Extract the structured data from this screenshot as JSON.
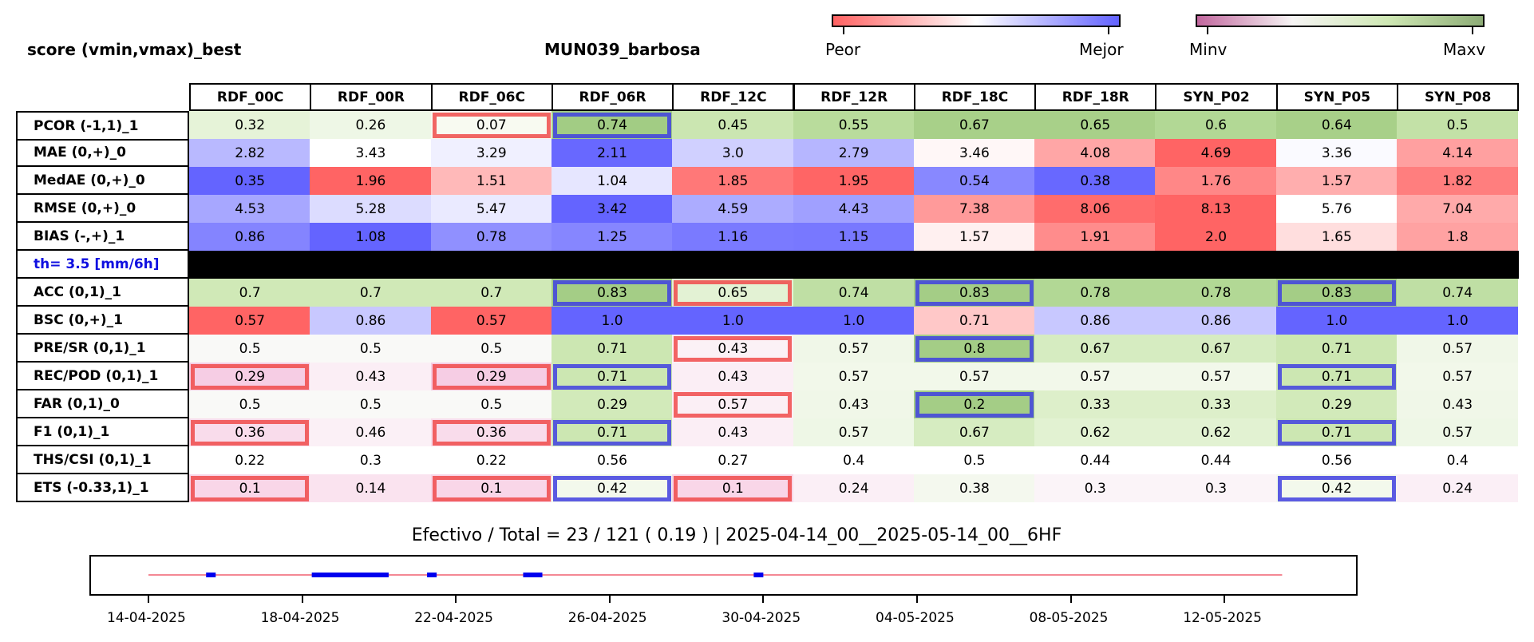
{
  "header": {
    "score_label": "score (vmin,vmax)_best",
    "station": "MUN039_barbosa"
  },
  "colorbars": [
    {
      "name": "diverging",
      "colors": [
        "#ff6262",
        "#ffffff",
        "#6262ff"
      ],
      "left_label": "Peor",
      "right_label": "Mejor"
    },
    {
      "name": "sequential",
      "colors": [
        "#c2679e",
        "#f6f4f4",
        "#cfe8b4",
        "#8dac76"
      ],
      "left_label": "Minv",
      "right_label": "Maxv"
    }
  ],
  "chart_data": {
    "type": "table",
    "columns": [
      "RDF_00C",
      "RDF_00R",
      "RDF_06C",
      "RDF_06R",
      "RDF_12C",
      "RDF_12R",
      "RDF_18C",
      "RDF_18R",
      "SYN_P02",
      "SYN_P05",
      "SYN_P08"
    ],
    "rows": [
      {
        "label": "PCOR (-1,1)_1",
        "values": [
          "0.32",
          "0.26",
          "0.07",
          "0.74",
          "0.45",
          "0.55",
          "0.67",
          "0.65",
          "0.6",
          "0.64",
          "0.5"
        ],
        "colors": [
          "#e6f3d8",
          "#eef7e6",
          "#f8faf1",
          "#a2cc84",
          "#cbe6b1",
          "#b9dc9c",
          "#a8d089",
          "#a8d089",
          "#b2d895",
          "#a8d089",
          "#c3e1a7"
        ],
        "best": [
          3
        ],
        "worst": [
          2
        ]
      },
      {
        "label": "MAE (0,+)_0",
        "values": [
          "2.82",
          "3.43",
          "3.29",
          "2.11",
          "3.0",
          "2.79",
          "3.46",
          "4.08",
          "4.69",
          "3.36",
          "4.14"
        ],
        "colors": [
          "#b9b9ff",
          "#ffffff",
          "#f0f0ff",
          "#6868ff",
          "#d0d0ff",
          "#b6b6ff",
          "#fff7f7",
          "#ffa6a6",
          "#ff6464",
          "#fafaff",
          "#ffa0a0"
        ],
        "best": [],
        "worst": []
      },
      {
        "label": "MedAE (0,+)_0",
        "values": [
          "0.35",
          "1.96",
          "1.51",
          "1.04",
          "1.85",
          "1.95",
          "0.54",
          "0.38",
          "1.76",
          "1.57",
          "1.82"
        ],
        "colors": [
          "#6464ff",
          "#ff6464",
          "#ffb9b9",
          "#e6e6ff",
          "#ff7878",
          "#ff6565",
          "#8888ff",
          "#6868ff",
          "#ff8787",
          "#ffaeae",
          "#ff7e7e"
        ],
        "best": [],
        "worst": []
      },
      {
        "label": "RMSE (0,+)_0",
        "values": [
          "4.53",
          "5.28",
          "5.47",
          "3.42",
          "4.59",
          "4.43",
          "7.38",
          "8.06",
          "8.13",
          "5.76",
          "7.04"
        ],
        "colors": [
          "#a7a7ff",
          "#dcdcff",
          "#eaeaff",
          "#6464ff",
          "#acacff",
          "#a0a0ff",
          "#ff9a9a",
          "#ff6c6c",
          "#ff6464",
          "#ffffff",
          "#ffaaaa"
        ],
        "best": [],
        "worst": []
      },
      {
        "label": "BIAS (-,+)_1",
        "values": [
          "0.86",
          "1.08",
          "0.78",
          "1.25",
          "1.16",
          "1.15",
          "1.57",
          "1.91",
          "2.0",
          "1.65",
          "1.8"
        ],
        "colors": [
          "#8484ff",
          "#6464ff",
          "#9090ff",
          "#8686ff",
          "#7a7aff",
          "#7878ff",
          "#fff0f0",
          "#ff8c8c",
          "#ff6464",
          "#ffdede",
          "#ffa2a2"
        ],
        "best": [],
        "worst": []
      },
      {
        "label": "th= 3.5 [mm/6h]",
        "values": [],
        "colors": [],
        "best": [],
        "worst": [],
        "separator": true
      },
      {
        "label": "ACC (0,1)_1",
        "values": [
          "0.7",
          "0.7",
          "0.7",
          "0.83",
          "0.65",
          "0.74",
          "0.83",
          "0.78",
          "0.78",
          "0.83",
          "0.74"
        ],
        "colors": [
          "#d0e9b7",
          "#d0e9b7",
          "#d0e9b7",
          "#a4cd86",
          "#e3f2d4",
          "#bfdfa4",
          "#a4cd86",
          "#b2d895",
          "#b2d895",
          "#a4cd86",
          "#bfdfa4"
        ],
        "best": [
          3,
          6,
          9
        ],
        "worst": [
          4
        ]
      },
      {
        "label": "BSC (0,+)_1",
        "values": [
          "0.57",
          "0.86",
          "0.57",
          "1.0",
          "1.0",
          "1.0",
          "0.71",
          "0.86",
          "0.86",
          "1.0",
          "1.0"
        ],
        "colors": [
          "#ff6464",
          "#c8c8ff",
          "#ff6464",
          "#6464ff",
          "#6464ff",
          "#6464ff",
          "#ffc8c8",
          "#c8c8ff",
          "#c8c8ff",
          "#6464ff",
          "#6464ff"
        ],
        "best": [],
        "worst": []
      },
      {
        "label": "PRE/SR (0,1)_1",
        "values": [
          "0.5",
          "0.5",
          "0.5",
          "0.71",
          "0.43",
          "0.57",
          "0.8",
          "0.67",
          "0.67",
          "0.71",
          "0.57"
        ],
        "colors": [
          "#f9f9f7",
          "#f9f9f7",
          "#f9f9f7",
          "#cce7b2",
          "#fbf1f6",
          "#f0f7e8",
          "#a4cd86",
          "#d6ecc1",
          "#d6ecc1",
          "#cce7b2",
          "#f0f7e8"
        ],
        "best": [
          6
        ],
        "worst": [
          4
        ]
      },
      {
        "label": "REC/POD (0,1)_1",
        "values": [
          "0.29",
          "0.43",
          "0.29",
          "0.71",
          "0.43",
          "0.57",
          "0.57",
          "0.57",
          "0.57",
          "0.71",
          "0.57"
        ],
        "colors": [
          "#f6cde4",
          "#fbeef5",
          "#f6cde4",
          "#cce7b2",
          "#fbeef5",
          "#f2f8ea",
          "#f2f8ea",
          "#f2f8ea",
          "#f2f8ea",
          "#cce7b2",
          "#f2f8ea"
        ],
        "best": [
          3,
          9
        ],
        "worst": [
          0,
          2
        ]
      },
      {
        "label": "FAR (0,1)_0",
        "values": [
          "0.5",
          "0.5",
          "0.5",
          "0.29",
          "0.57",
          "0.43",
          "0.2",
          "0.33",
          "0.33",
          "0.29",
          "0.43"
        ],
        "colors": [
          "#f9f9f7",
          "#f9f9f7",
          "#f9f9f7",
          "#d2eaba",
          "#fbeff5",
          "#f0f7e8",
          "#a4cd86",
          "#ddefca",
          "#ddefca",
          "#d2eaba",
          "#f0f7e8"
        ],
        "best": [
          6
        ],
        "worst": [
          4
        ]
      },
      {
        "label": "F1 (0,1)_1",
        "values": [
          "0.36",
          "0.46",
          "0.36",
          "0.71",
          "0.43",
          "0.57",
          "0.67",
          "0.62",
          "0.62",
          "0.71",
          "0.57"
        ],
        "colors": [
          "#f9dceb",
          "#fbf0f6",
          "#f9dceb",
          "#cce7b2",
          "#fbeef5",
          "#eef7e6",
          "#d6ecc1",
          "#e2f2d2",
          "#e2f2d2",
          "#cce7b2",
          "#eef7e6"
        ],
        "best": [
          3,
          9
        ],
        "worst": [
          0,
          2
        ]
      },
      {
        "label": "THS/CSI (0,1)_1",
        "values": [
          "0.22",
          "0.3",
          "0.22",
          "0.56",
          "0.27",
          "0.4",
          "0.5",
          "0.44",
          "0.44",
          "0.56",
          "0.4"
        ],
        "colors": [
          "#ffffff",
          "#ffffff",
          "#ffffff",
          "#ffffff",
          "#ffffff",
          "#ffffff",
          "#ffffff",
          "#ffffff",
          "#ffffff",
          "#ffffff",
          "#ffffff"
        ],
        "best": [],
        "worst": []
      },
      {
        "label": "ETS (-0.33,1)_1",
        "values": [
          "0.1",
          "0.14",
          "0.1",
          "0.42",
          "0.1",
          "0.24",
          "0.38",
          "0.3",
          "0.3",
          "0.42",
          "0.24"
        ],
        "colors": [
          "#f9d6e8",
          "#fae3ef",
          "#f9d6e8",
          "#f3f9ec",
          "#f9d6e8",
          "#fbeff6",
          "#f4f8ee",
          "#fbf4f8",
          "#fbf4f8",
          "#f3f9ec",
          "#fbeff6"
        ],
        "best": [
          3,
          9
        ],
        "worst": [
          0,
          2,
          4
        ]
      }
    ],
    "highlight_colors": {
      "best": "#4040e0",
      "worst": "#f04a4a"
    },
    "summary": "Efectivo / Total  =  23 / 121 ( 0.19 ) | 2025-04-14_00__2025-05-14_00__6HF",
    "timeline": {
      "x_ticks": [
        "14-04-2025",
        "18-04-2025",
        "22-04-2025",
        "26-04-2025",
        "30-04-2025",
        "04-05-2025",
        "08-05-2025",
        "12-05-2025"
      ],
      "x_range": [
        "2025-04-14",
        "2025-05-14"
      ],
      "segments": [
        [
          "2025-04-15 12:00",
          "2025-04-15 18:00"
        ],
        [
          "2025-04-18 06:00",
          "2025-04-20 06:00"
        ],
        [
          "2025-04-21 06:00",
          "2025-04-21 12:00"
        ],
        [
          "2025-04-23 18:00",
          "2025-04-24 06:00"
        ],
        [
          "2025-04-29 18:00",
          "2025-04-30 00:00"
        ]
      ],
      "line_color": "#f06070",
      "segment_color": "#0000ee"
    }
  }
}
